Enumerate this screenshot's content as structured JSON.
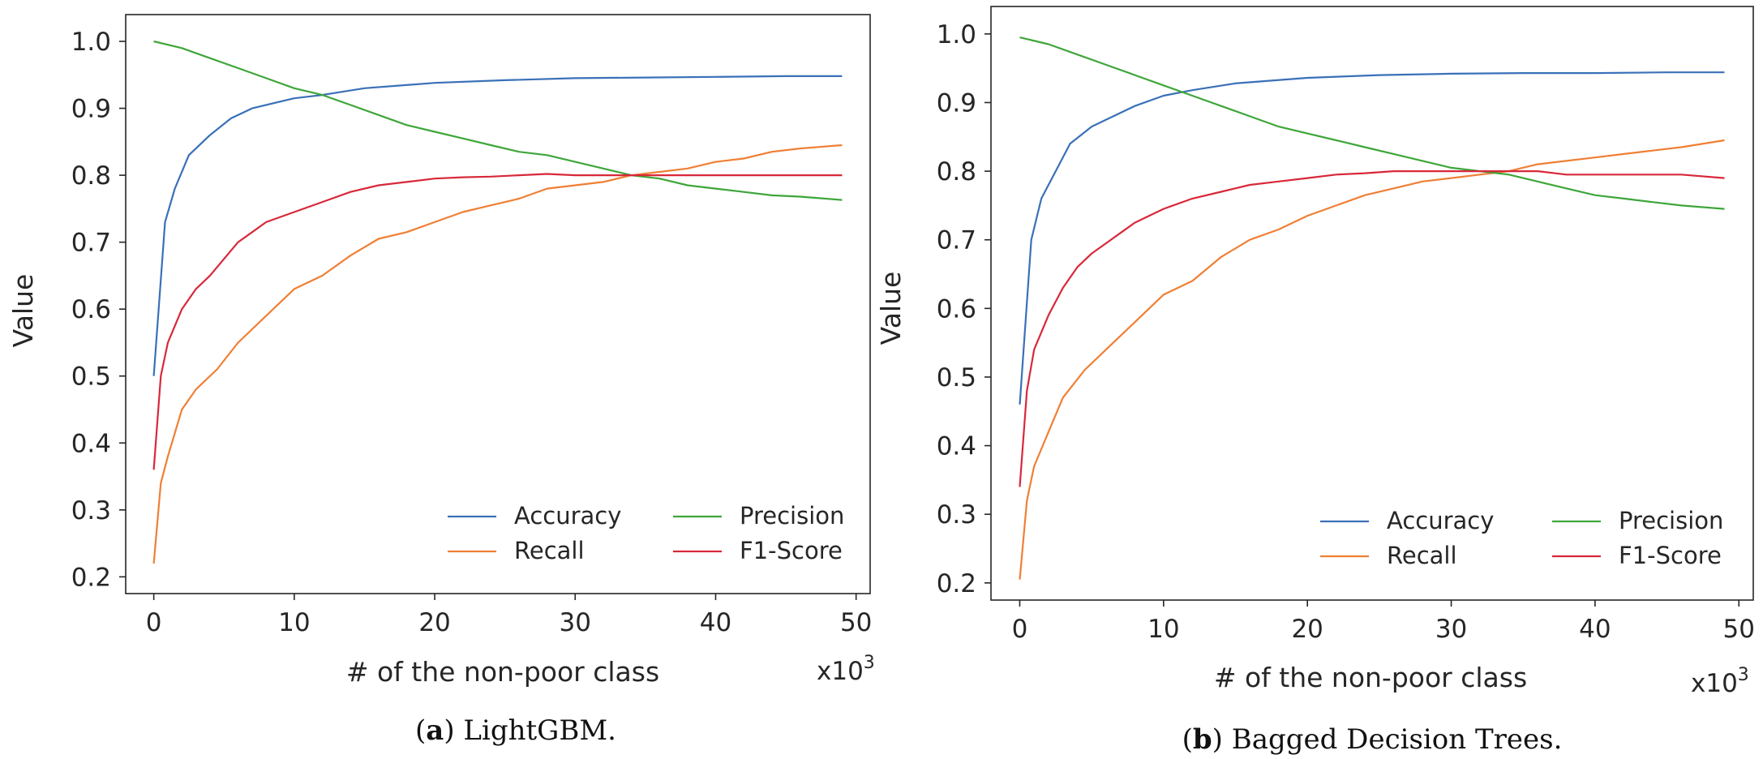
{
  "chart_data": [
    {
      "type": "line",
      "panel_letter": "a",
      "caption": "LightGBM.",
      "xlabel": "# of the non-poor class",
      "ylabel": "Value",
      "x_multiplier": "x10",
      "x_multiplier_exp": "3",
      "xlim": [
        -2,
        51
      ],
      "ylim": [
        0.175,
        1.04
      ],
      "xticks": [
        0,
        10,
        20,
        30,
        40,
        50
      ],
      "yticks": [
        0.2,
        0.3,
        0.4,
        0.5,
        0.6,
        0.7,
        0.8,
        0.9,
        1.0
      ],
      "ytick_labels": [
        "0.2",
        "0.3",
        "0.4",
        "0.5",
        "0.6",
        "0.7",
        "0.8",
        "0.9",
        "1.0"
      ],
      "legend": {
        "position": "lower-right",
        "columns": 2,
        "order": [
          "Accuracy",
          "Precision",
          "Recall",
          "F1-Score"
        ]
      },
      "series": [
        {
          "name": "Accuracy",
          "color": "#3a70b8",
          "x": [
            0,
            0.8,
            1.5,
            2.5,
            4,
            5.5,
            7,
            8,
            10,
            12,
            15,
            20,
            25,
            30,
            35,
            40,
            45,
            49
          ],
          "y": [
            0.5,
            0.73,
            0.78,
            0.83,
            0.86,
            0.885,
            0.9,
            0.905,
            0.915,
            0.92,
            0.93,
            0.938,
            0.942,
            0.945,
            0.946,
            0.947,
            0.948,
            0.948
          ]
        },
        {
          "name": "Recall",
          "color": "#f07f35",
          "x": [
            0,
            0.5,
            1,
            2,
            3,
            4.5,
            6,
            8,
            10,
            12,
            14,
            16,
            18,
            20,
            22,
            24,
            26,
            28,
            30,
            32,
            34,
            36,
            38,
            40,
            42,
            44,
            46,
            49
          ],
          "y": [
            0.22,
            0.34,
            0.38,
            0.45,
            0.48,
            0.51,
            0.55,
            0.59,
            0.63,
            0.65,
            0.68,
            0.705,
            0.715,
            0.73,
            0.745,
            0.755,
            0.765,
            0.78,
            0.785,
            0.79,
            0.8,
            0.805,
            0.81,
            0.82,
            0.825,
            0.835,
            0.84,
            0.845
          ]
        },
        {
          "name": "Precision",
          "color": "#3ea63a",
          "x": [
            0,
            2,
            4,
            6,
            8,
            10,
            12,
            14,
            16,
            18,
            20,
            22,
            24,
            26,
            28,
            30,
            32,
            34,
            36,
            38,
            40,
            42,
            44,
            46,
            49
          ],
          "y": [
            1.0,
            0.99,
            0.975,
            0.96,
            0.945,
            0.93,
            0.92,
            0.905,
            0.89,
            0.875,
            0.865,
            0.855,
            0.845,
            0.835,
            0.83,
            0.82,
            0.81,
            0.8,
            0.795,
            0.785,
            0.78,
            0.775,
            0.77,
            0.768,
            0.763
          ]
        },
        {
          "name": "F1-Score",
          "color": "#d8283a",
          "x": [
            0,
            0.5,
            1,
            2,
            3,
            4,
            5,
            6,
            7,
            8,
            10,
            12,
            14,
            16,
            18,
            20,
            22,
            24,
            26,
            28,
            30,
            32,
            34,
            36,
            38,
            40,
            42,
            44,
            46,
            49
          ],
          "y": [
            0.36,
            0.5,
            0.55,
            0.6,
            0.63,
            0.65,
            0.675,
            0.7,
            0.715,
            0.73,
            0.745,
            0.76,
            0.775,
            0.785,
            0.79,
            0.795,
            0.797,
            0.798,
            0.8,
            0.802,
            0.8,
            0.8,
            0.8,
            0.8,
            0.8,
            0.8,
            0.8,
            0.8,
            0.8,
            0.8
          ]
        }
      ]
    },
    {
      "type": "line",
      "panel_letter": "b",
      "caption": "Bagged Decision Trees.",
      "xlabel": "# of the non-poor class",
      "ylabel": "Value",
      "x_multiplier": "x10",
      "x_multiplier_exp": "3",
      "xlim": [
        -2,
        51
      ],
      "ylim": [
        0.175,
        1.04
      ],
      "xticks": [
        0,
        10,
        20,
        30,
        40,
        50
      ],
      "yticks": [
        0.2,
        0.3,
        0.4,
        0.5,
        0.6,
        0.7,
        0.8,
        0.9,
        1.0
      ],
      "ytick_labels": [
        "0.2",
        "0.3",
        "0.4",
        "0.5",
        "0.6",
        "0.7",
        "0.8",
        "0.9",
        "1.0"
      ],
      "legend": {
        "position": "lower-right",
        "columns": 2,
        "order": [
          "Accuracy",
          "Precision",
          "Recall",
          "F1-Score"
        ]
      },
      "series": [
        {
          "name": "Accuracy",
          "color": "#3a70b8",
          "x": [
            0,
            0.8,
            1.5,
            2.5,
            3.5,
            5,
            6.5,
            8,
            10,
            12,
            15,
            20,
            25,
            30,
            35,
            40,
            45,
            49
          ],
          "y": [
            0.46,
            0.7,
            0.76,
            0.8,
            0.84,
            0.865,
            0.88,
            0.895,
            0.91,
            0.918,
            0.928,
            0.936,
            0.94,
            0.942,
            0.943,
            0.943,
            0.944,
            0.944
          ]
        },
        {
          "name": "Recall",
          "color": "#f07f35",
          "x": [
            0,
            0.5,
            1,
            2,
            3,
            4.5,
            6,
            8,
            10,
            12,
            14,
            16,
            18,
            20,
            22,
            24,
            26,
            28,
            30,
            32,
            34,
            36,
            38,
            40,
            42,
            44,
            46,
            49
          ],
          "y": [
            0.205,
            0.32,
            0.37,
            0.42,
            0.47,
            0.51,
            0.54,
            0.58,
            0.62,
            0.64,
            0.675,
            0.7,
            0.715,
            0.735,
            0.75,
            0.765,
            0.775,
            0.785,
            0.79,
            0.795,
            0.8,
            0.81,
            0.815,
            0.82,
            0.825,
            0.83,
            0.835,
            0.845
          ]
        },
        {
          "name": "Precision",
          "color": "#3ea63a",
          "x": [
            0,
            2,
            4,
            6,
            8,
            10,
            12,
            14,
            16,
            18,
            20,
            22,
            24,
            26,
            28,
            30,
            32,
            34,
            36,
            38,
            40,
            42,
            44,
            46,
            49
          ],
          "y": [
            0.995,
            0.985,
            0.97,
            0.955,
            0.94,
            0.925,
            0.91,
            0.895,
            0.88,
            0.865,
            0.855,
            0.845,
            0.835,
            0.825,
            0.815,
            0.805,
            0.8,
            0.795,
            0.785,
            0.775,
            0.765,
            0.76,
            0.755,
            0.75,
            0.745
          ]
        },
        {
          "name": "F1-Score",
          "color": "#d8283a",
          "x": [
            0,
            0.5,
            1,
            2,
            3,
            4,
            5,
            6,
            7,
            8,
            10,
            12,
            14,
            16,
            18,
            20,
            22,
            24,
            26,
            28,
            30,
            32,
            34,
            36,
            38,
            40,
            42,
            44,
            46,
            49
          ],
          "y": [
            0.34,
            0.48,
            0.54,
            0.59,
            0.63,
            0.66,
            0.68,
            0.695,
            0.71,
            0.725,
            0.745,
            0.76,
            0.77,
            0.78,
            0.785,
            0.79,
            0.795,
            0.797,
            0.8,
            0.8,
            0.8,
            0.8,
            0.8,
            0.8,
            0.795,
            0.795,
            0.795,
            0.795,
            0.795,
            0.79
          ]
        }
      ]
    }
  ]
}
